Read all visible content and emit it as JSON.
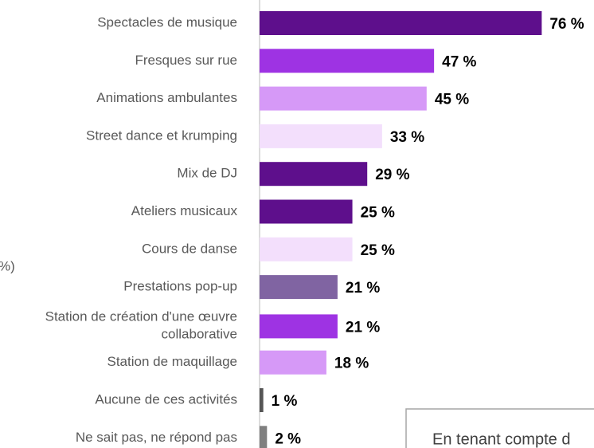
{
  "chart_data": {
    "type": "bar",
    "categories": [
      "Spectacles de musique",
      "Fresques sur rue",
      "Animations ambulantes",
      "Street dance et krumping",
      "Mix de DJ",
      "Ateliers musicaux",
      "Cours de danse",
      "Prestations pop-up",
      "Station de création d'une œuvre\ncollaborative",
      "Station de maquillage",
      "Aucune de ces activités",
      "Ne sait pas, ne répond pas"
    ],
    "values": [
      76,
      47,
      45,
      33,
      29,
      25,
      25,
      21,
      21,
      18,
      1,
      2
    ],
    "value_labels": [
      "76 %",
      "47 %",
      "45 %",
      "33 %",
      "29 %",
      "25 %",
      "25 %",
      "21 %",
      "21 %",
      "18 %",
      "1 %",
      "2 %"
    ],
    "colors": [
      "#5e0f8c",
      "#9e33e3",
      "#d699f7",
      "#f3dffc",
      "#5e0f8c",
      "#5e0f8c",
      "#f3dffc",
      "#8064a2",
      "#9e33e3",
      "#d699f7",
      "#555555",
      "#808080"
    ],
    "xlim": [
      0,
      80
    ],
    "annotations": [
      "%)",
      "En tenant compte d"
    ]
  }
}
